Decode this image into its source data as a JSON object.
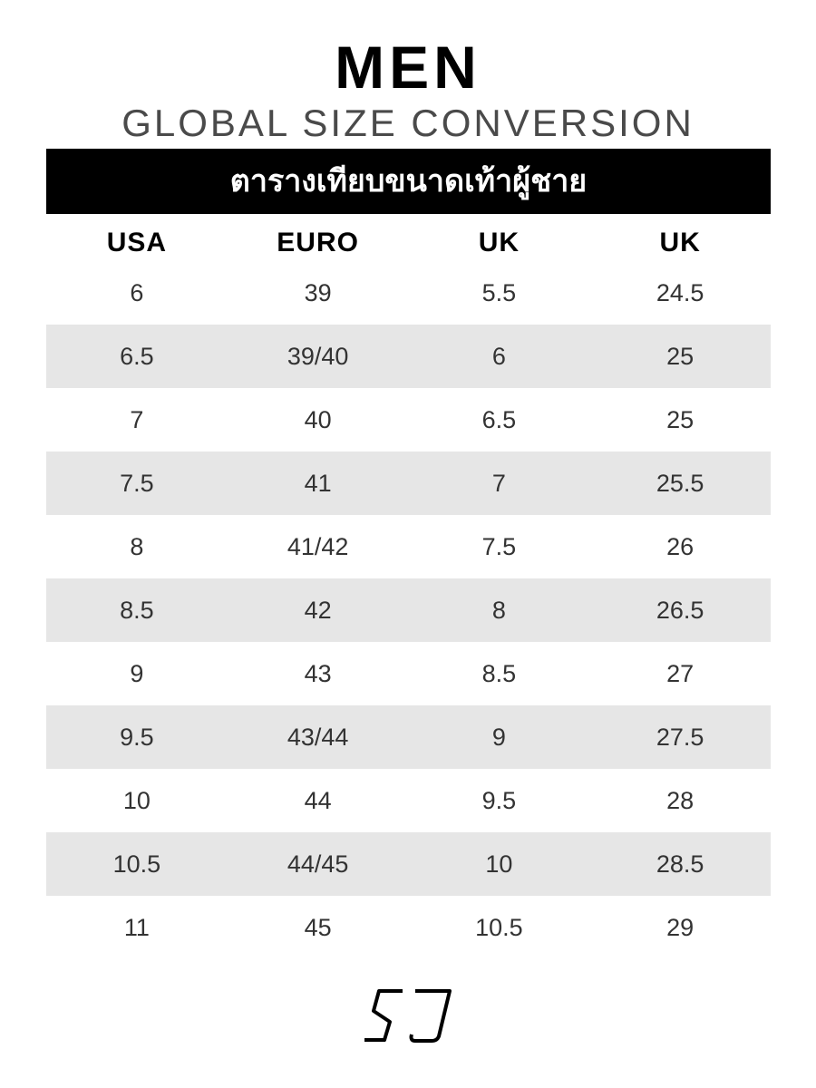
{
  "title": "MEN",
  "subtitle": "GLOBAL SIZE CONVERSION",
  "banner": "ตารางเทียบขนาดเท้าผู้ชาย",
  "table": {
    "headers": [
      "USA",
      "EURO",
      "UK",
      "UK"
    ],
    "rows": [
      [
        "6",
        "39",
        "5.5",
        "24.5"
      ],
      [
        "6.5",
        "39/40",
        "6",
        "25"
      ],
      [
        "7",
        "40",
        "6.5",
        "25"
      ],
      [
        "7.5",
        "41",
        "7",
        "25.5"
      ],
      [
        "8",
        "41/42",
        "7.5",
        "26"
      ],
      [
        "8.5",
        "42",
        "8",
        "26.5"
      ],
      [
        "9",
        "43",
        "8.5",
        "27"
      ],
      [
        "9.5",
        "43/44",
        "9",
        "27.5"
      ],
      [
        "10",
        "44",
        "9.5",
        "28"
      ],
      [
        "10.5",
        "44/45",
        "10",
        "28.5"
      ],
      [
        "11",
        "45",
        "10.5",
        "29"
      ]
    ]
  },
  "logo": "SJ",
  "colors": {
    "banner": "#000000",
    "stripe": "#e6e6e6",
    "subtitle": "#4a4a4a"
  }
}
